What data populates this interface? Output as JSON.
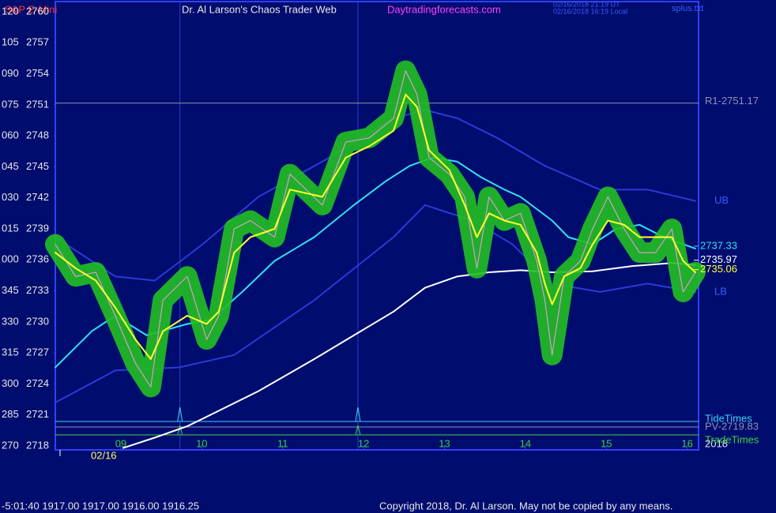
{
  "chart_data": {
    "type": "line",
    "instrument": "S&P E-Mini",
    "title": "Dr. Al Larson's Chaos Trader Web",
    "site": "Daytradingforecasts.com",
    "timestamps": [
      "02/16/2018 21:19 UT",
      "02/16/2018 16:19 Local"
    ],
    "file": "splus.txt",
    "ylim": [
      2717.62,
      2760.99
    ],
    "yticks": [
      2760,
      2757,
      2754,
      2751,
      2748,
      2745,
      2742,
      2739,
      2736,
      2733,
      2730,
      2727,
      2724,
      2721,
      2718
    ],
    "angle_labels": [
      "120",
      "105",
      "090",
      "075",
      "060",
      "045",
      "030",
      "015",
      "000",
      "345",
      "330",
      "315",
      "300",
      "285",
      "270"
    ],
    "xlim": [
      8.19,
      16.14
    ],
    "xticks": [
      {
        "value": 9,
        "label": "09"
      },
      {
        "value": 10,
        "label": "10"
      },
      {
        "value": 11,
        "label": "11"
      },
      {
        "value": 12,
        "label": "12"
      },
      {
        "value": 13,
        "label": "13"
      },
      {
        "value": 14,
        "label": "14"
      },
      {
        "value": 15,
        "label": "15"
      },
      {
        "value": 16,
        "label": "16"
      }
    ],
    "date_label": "02/16",
    "year_label": "2018",
    "day_lines": [
      9.73,
      11.93
    ],
    "levels": [
      {
        "label": "R1-2751.17",
        "value": 2751.17,
        "color": "#9090b0"
      },
      {
        "label": "PV-2719.83",
        "value": 2719.83,
        "color": "#9090b0"
      }
    ],
    "time_lines": [
      {
        "label": "TideTimes",
        "value": 2720.37,
        "color": "#40d0f0",
        "spikes": [
          9.73,
          11.93
        ]
      },
      {
        "label": "TradeTimes",
        "value": 2719.07,
        "color": "#40d040",
        "spikes": [
          9.73,
          11.93
        ]
      }
    ],
    "series": [
      {
        "name": "UB",
        "color": "#2a3ad8",
        "x": [
          8.19,
          8.93,
          9.42,
          10.01,
          10.7,
          11.58,
          12.37,
          12.76,
          13.16,
          13.65,
          14.24,
          14.92,
          15.51,
          16.1
        ],
        "values": [
          2738.2,
          2734.4,
          2734.0,
          2737.5,
          2742.1,
          2745.9,
          2749.7,
          2750.5,
          2749.7,
          2747.8,
          2745.1,
          2742.8,
          2742.8,
          2741.7
        ]
      },
      {
        "name": "LB",
        "color": "#2a3ad8",
        "x": [
          8.19,
          8.93,
          9.72,
          10.4,
          11.39,
          12.37,
          12.76,
          13.35,
          13.84,
          14.33,
          14.92,
          15.51,
          16.1
        ],
        "values": [
          2722.2,
          2725.3,
          2725.6,
          2726.8,
          2732.1,
          2738.2,
          2741.3,
          2739.8,
          2737.5,
          2733.7,
          2732.9,
          2733.7,
          2732.9
        ]
      },
      {
        "color": "#ffffff",
        "last_value": 2735.97,
        "x": [
          9.03,
          9.42,
          9.82,
          10.21,
          10.7,
          11.39,
          11.88,
          12.37,
          12.76,
          13.16,
          13.55,
          13.94,
          14.33,
          14.83,
          15.32,
          15.81,
          16.1
        ],
        "values": [
          2717.8,
          2718.8,
          2719.9,
          2721.4,
          2723.3,
          2726.4,
          2728.7,
          2731.0,
          2733.3,
          2734.4,
          2734.8,
          2735.0,
          2734.8,
          2734.9,
          2735.4,
          2735.7,
          2735.5
        ]
      },
      {
        "color": "#30e0f0",
        "last_value": 2737.33,
        "x": [
          8.19,
          8.64,
          8.93,
          9.32,
          9.82,
          10.11,
          10.5,
          10.9,
          11.39,
          11.88,
          12.27,
          12.57,
          12.86,
          13.16,
          13.45,
          13.74,
          13.94,
          14.33,
          14.53,
          14.83,
          15.12,
          15.41,
          15.71,
          16.1
        ],
        "values": [
          2725.6,
          2729.1,
          2730.6,
          2728.7,
          2729.8,
          2730.2,
          2732.9,
          2735.9,
          2738.2,
          2741.3,
          2743.6,
          2745.1,
          2745.9,
          2745.5,
          2744.0,
          2742.8,
          2742.1,
          2739.8,
          2738.2,
          2737.5,
          2739.0,
          2739.4,
          2738.2,
          2737.1
        ]
      },
      {
        "color": "#22c022",
        "price": true,
        "x": [
          8.19,
          8.44,
          8.69,
          8.93,
          9.18,
          9.37,
          9.52,
          9.82,
          10.06,
          10.21,
          10.4,
          10.6,
          10.9,
          11.09,
          11.49,
          11.78,
          12.07,
          12.37,
          12.52,
          12.66,
          12.81,
          13.06,
          13.25,
          13.4,
          13.55,
          13.74,
          13.94,
          14.14,
          14.24,
          14.33,
          14.48,
          14.68,
          14.83,
          15.02,
          15.22,
          15.41,
          15.61,
          15.81,
          15.95,
          16.1
        ],
        "values": [
          2737.5,
          2734.4,
          2734.8,
          2730.6,
          2726.0,
          2723.7,
          2732.1,
          2734.4,
          2728.3,
          2730.6,
          2739.0,
          2739.8,
          2738.2,
          2744.3,
          2741.3,
          2747.4,
          2747.8,
          2749.7,
          2754.3,
          2752.0,
          2745.9,
          2744.3,
          2742.1,
          2735.2,
          2742.1,
          2739.8,
          2740.5,
          2735.9,
          2732.1,
          2726.8,
          2734.4,
          2735.9,
          2739.0,
          2742.1,
          2739.0,
          2736.7,
          2736.7,
          2739.0,
          2732.9,
          2734.8
        ]
      },
      {
        "color": "#ffff30",
        "last_value": 2735.06,
        "x": [
          8.19,
          8.44,
          8.69,
          8.93,
          9.18,
          9.37,
          9.52,
          9.82,
          10.06,
          10.21,
          10.4,
          10.6,
          10.9,
          11.09,
          11.49,
          11.78,
          12.07,
          12.37,
          12.52,
          12.66,
          12.81,
          13.06,
          13.25,
          13.4,
          13.55,
          13.74,
          13.94,
          14.14,
          14.24,
          14.33,
          14.48,
          14.68,
          14.83,
          15.02,
          15.22,
          15.41,
          15.61,
          15.81,
          15.95,
          16.1
        ],
        "values": [
          2736.7,
          2735.2,
          2734.0,
          2731.4,
          2728.3,
          2726.4,
          2729.1,
          2730.6,
          2729.8,
          2731.0,
          2736.7,
          2738.2,
          2739.0,
          2742.8,
          2742.1,
          2745.9,
          2747.0,
          2748.5,
          2752.0,
          2750.8,
          2746.6,
          2744.7,
          2741.3,
          2738.2,
          2740.5,
          2739.8,
          2739.4,
          2736.7,
          2733.7,
          2731.7,
          2734.4,
          2735.2,
          2737.5,
          2739.8,
          2739.4,
          2738.2,
          2738.2,
          2738.2,
          2735.9,
          2734.8
        ]
      }
    ],
    "status": "-5:01:40  1917.00 1917.00 1916.00 1916.25",
    "copyright": "Copyright 2018, Dr. Al Larson. May not be copied by any means."
  }
}
